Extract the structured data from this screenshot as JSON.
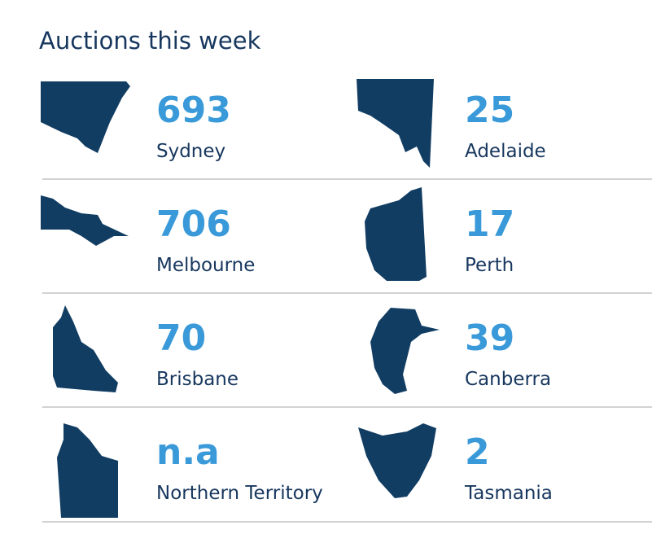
{
  "title": "Auctions this week",
  "items": [
    {
      "value": 693,
      "city": "Sydney"
    },
    {
      "value": 25,
      "city": "Adelaide"
    },
    {
      "value": 706,
      "city": "Melbourne"
    },
    {
      "value": 17,
      "city": "Perth"
    },
    {
      "value": 70,
      "city": "Brisbane"
    },
    {
      "value": 39,
      "city": "Canberra"
    },
    {
      "value": "n.a",
      "city": "Northern Territory"
    },
    {
      "value": 2,
      "city": "Tasmania"
    }
  ]
}
